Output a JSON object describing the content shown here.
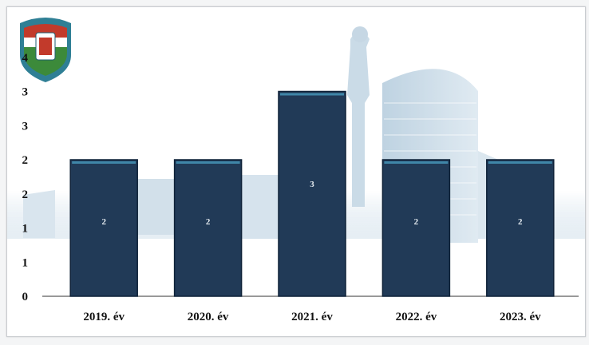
{
  "chart_data": {
    "type": "bar",
    "title": "",
    "xlabel": "",
    "ylabel": "",
    "categories": [
      "2019. év",
      "2020. év",
      "2021. év",
      "2022. év",
      "2023. év"
    ],
    "values": [
      2,
      2,
      3,
      2,
      2
    ],
    "data_labels": [
      "2",
      "2",
      "3",
      "2",
      "2"
    ],
    "ylim": [
      0,
      4
    ],
    "y_ticks": [
      0,
      0.5,
      1,
      1.5,
      2,
      2.5,
      3,
      3.5
    ],
    "y_tick_labels": [
      "0",
      "1",
      "1",
      "2",
      "2",
      "3",
      "3",
      "4"
    ],
    "grid": false,
    "legend": "none",
    "bar_color": "#213a57",
    "bar_top_color": "#3f86a8"
  },
  "logo": {
    "name": "shield-logo",
    "top_band_color": "#c23a2b",
    "middle_band_color": "#ffffff",
    "bottom_band_color": "#3c8a3a",
    "frame_color": "#2f7f95"
  }
}
